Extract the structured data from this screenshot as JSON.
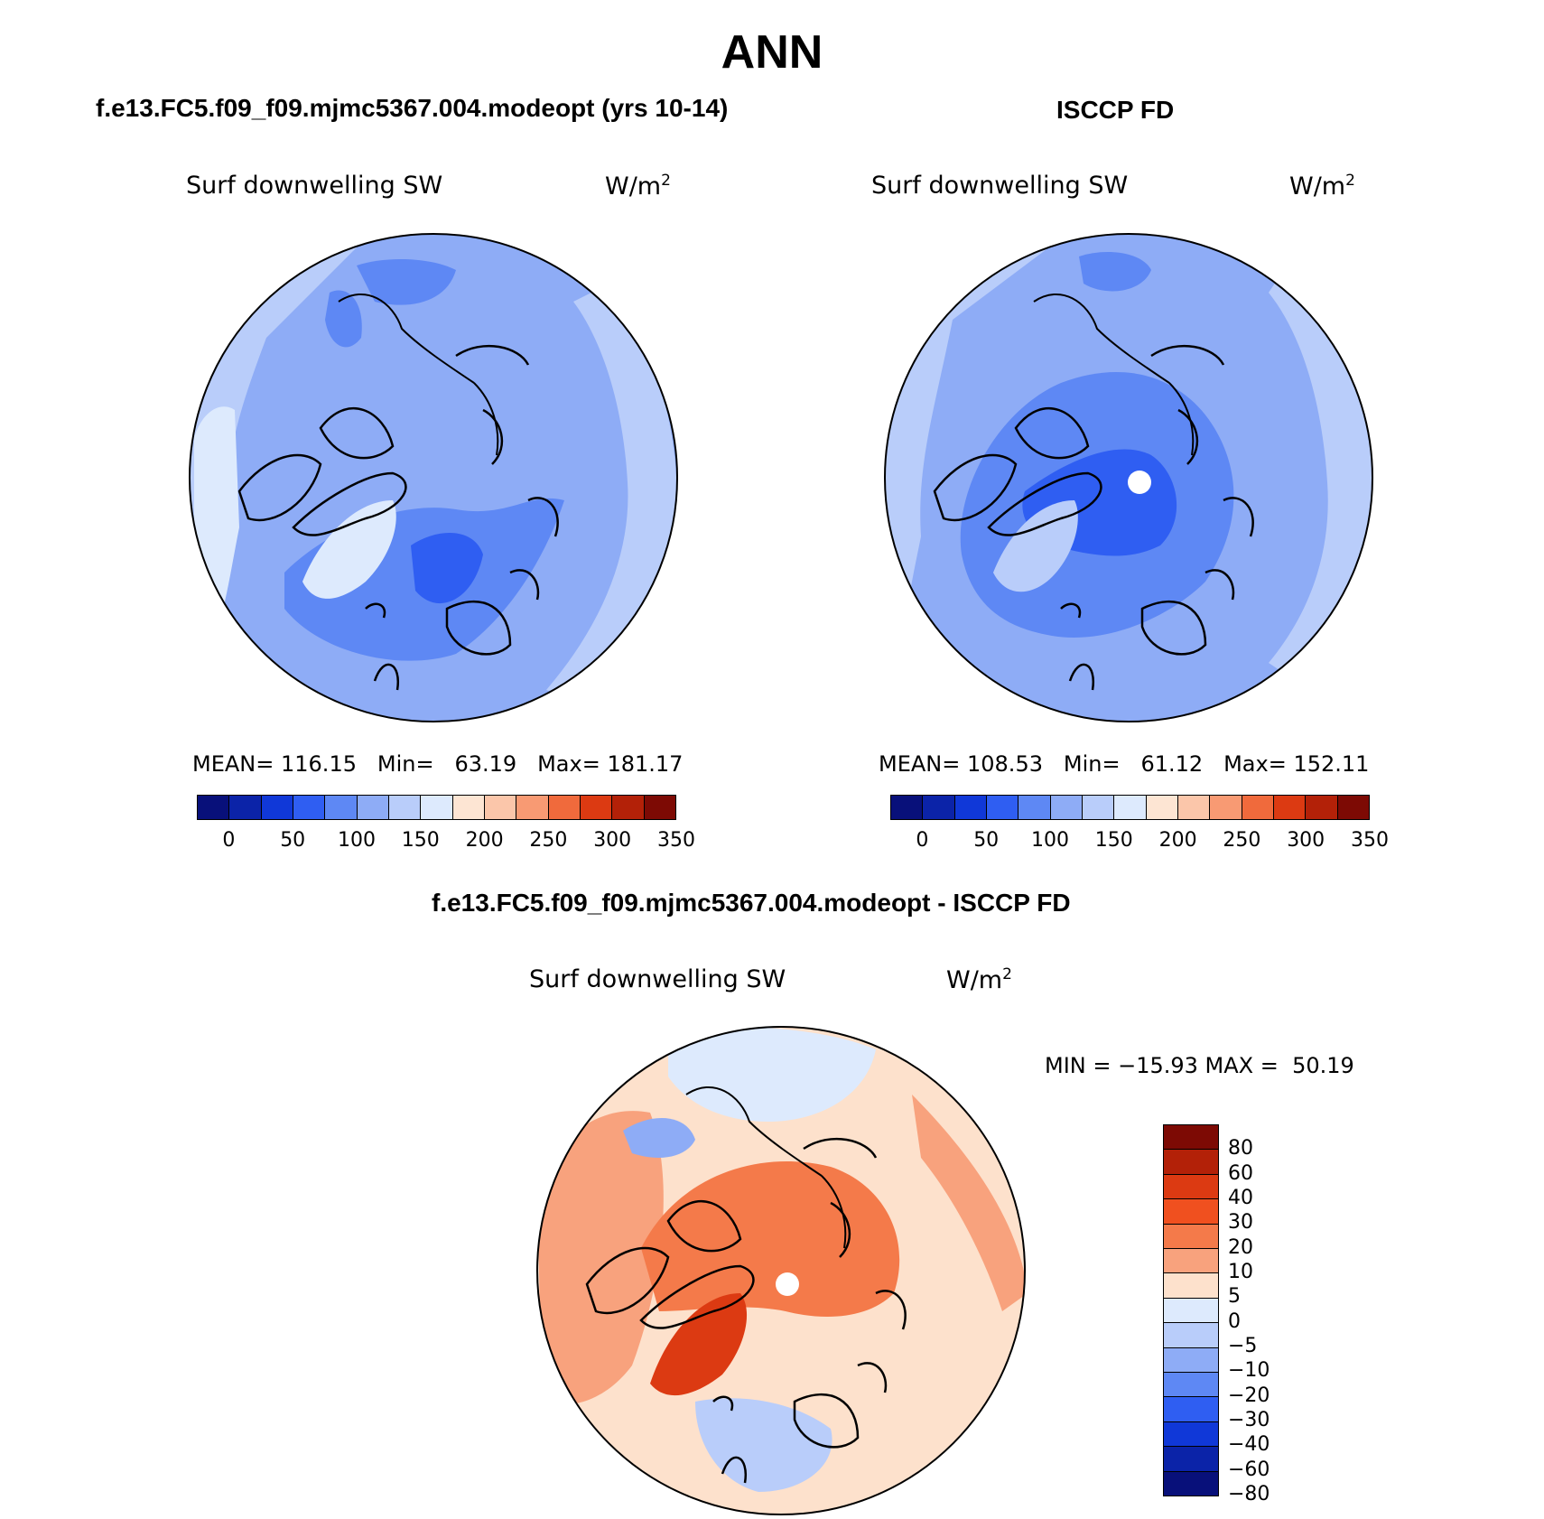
{
  "figure": {
    "title": "ANN",
    "diff_title": "f.e13.FC5.f09_f09.mjmc5367.004.modeopt - ISCCP FD"
  },
  "panels": [
    {
      "id": "model",
      "title": "f.e13.FC5.f09_f09.mjmc5367.004.modeopt (yrs 10-14)",
      "variable": "Surf downwelling SW",
      "units_base": "W/m",
      "units_exp": "2",
      "stats": {
        "mean_label": "MEAN=",
        "mean": "116.15",
        "min_label": "Min=",
        "min": "63.19",
        "max_label": "Max=",
        "max": "181.17"
      }
    },
    {
      "id": "obs",
      "title": "ISCCP FD",
      "variable": "Surf downwelling SW",
      "units_base": "W/m",
      "units_exp": "2",
      "stats": {
        "mean_label": "MEAN=",
        "mean": "108.53",
        "min_label": "Min=",
        "min": "61.12",
        "max_label": "Max=",
        "max": "152.11"
      }
    },
    {
      "id": "diff",
      "variable": "Surf downwelling SW",
      "units_base": "W/m",
      "units_exp": "2",
      "stats_line": "MIN = −15.93 MAX =  50.19"
    }
  ],
  "colorbar_abs": {
    "colors": [
      "#08107a",
      "#0b23a8",
      "#1038d8",
      "#2f5ef2",
      "#5e88f4",
      "#8eacf6",
      "#b9cdfa",
      "#ddeafd",
      "#fde5d3",
      "#fbc6aa",
      "#f89a73",
      "#f06a3c",
      "#dc3a12",
      "#b32108",
      "#7d0a04"
    ],
    "tick_labels": [
      "0",
      "50",
      "100",
      "150",
      "200",
      "250",
      "300",
      "350"
    ]
  },
  "colorbar_diff": {
    "colors_top_to_bottom": [
      "#7d0a04",
      "#b32108",
      "#dc3a12",
      "#f0501f",
      "#f47a4a",
      "#f8a27d",
      "#fde1cc",
      "#ddeafd",
      "#b9cdfa",
      "#8eacf6",
      "#5e88f4",
      "#2f5ef2",
      "#1038d8",
      "#0b23a8",
      "#08107a"
    ],
    "tick_labels": [
      "80",
      "60",
      "40",
      "30",
      "20",
      "10",
      "5",
      "0",
      "−5",
      "−10",
      "−20",
      "−30",
      "−40",
      "−60",
      "−80"
    ]
  },
  "chart_data": [
    {
      "type": "heatmap",
      "projection": "north polar stereographic",
      "title": "f.e13.FC5.f09_f09.mjmc5367.004.modeopt (yrs 10-14)",
      "variable": "Surf downwelling SW",
      "units": "W/m2",
      "mean": 116.15,
      "min": 63.19,
      "max": 181.17,
      "colorbar_levels": [
        0,
        25,
        50,
        75,
        100,
        125,
        150,
        175,
        200,
        225,
        250,
        275,
        300,
        325,
        350
      ]
    },
    {
      "type": "heatmap",
      "projection": "north polar stereographic",
      "title": "ISCCP FD",
      "variable": "Surf downwelling SW",
      "units": "W/m2",
      "mean": 108.53,
      "min": 61.12,
      "max": 152.11,
      "colorbar_levels": [
        0,
        25,
        50,
        75,
        100,
        125,
        150,
        175,
        200,
        225,
        250,
        275,
        300,
        325,
        350
      ]
    },
    {
      "type": "heatmap",
      "projection": "north polar stereographic",
      "title": "f.e13.FC5.f09_f09.mjmc5367.004.modeopt - ISCCP FD",
      "variable": "Surf downwelling SW",
      "units": "W/m2",
      "min": -15.93,
      "max": 50.19,
      "colorbar_levels": [
        -80,
        -60,
        -40,
        -30,
        -20,
        -10,
        -5,
        0,
        5,
        10,
        20,
        30,
        40,
        60,
        80
      ]
    }
  ]
}
